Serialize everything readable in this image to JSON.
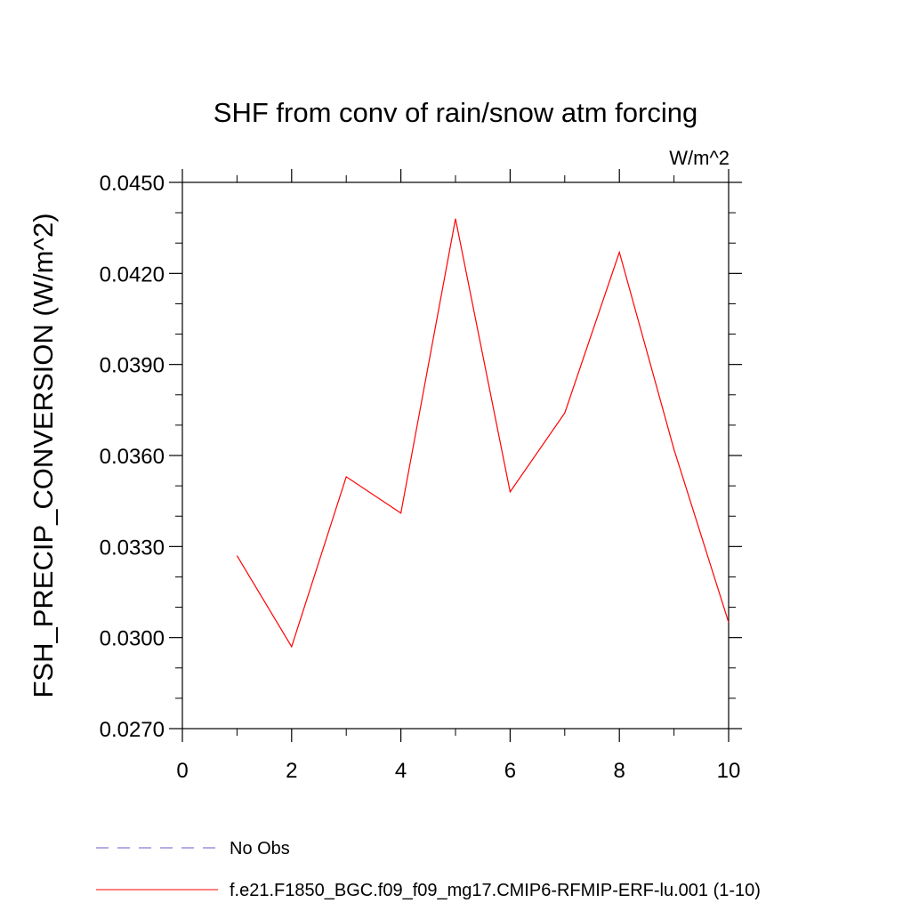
{
  "chart_data": {
    "type": "line",
    "title": "SHF from conv of rain/snow atm forcing",
    "units_label": "W/m^2",
    "ylabel": "FSH_PRECIP_CONVERSION  (W/m^2)",
    "xlabel": "",
    "xlim": [
      0,
      10
    ],
    "ylim": [
      0.027,
      0.045
    ],
    "xticks": [
      {
        "v": 0,
        "label": "0"
      },
      {
        "v": 2,
        "label": "2"
      },
      {
        "v": 4,
        "label": "4"
      },
      {
        "v": 6,
        "label": "6"
      },
      {
        "v": 8,
        "label": "8"
      },
      {
        "v": 10,
        "label": "10"
      }
    ],
    "yticks": [
      {
        "v": 0.027,
        "label": "0.0270"
      },
      {
        "v": 0.03,
        "label": "0.0300"
      },
      {
        "v": 0.033,
        "label": "0.0330"
      },
      {
        "v": 0.036,
        "label": "0.0360"
      },
      {
        "v": 0.039,
        "label": "0.0390"
      },
      {
        "v": 0.042,
        "label": "0.0420"
      },
      {
        "v": 0.045,
        "label": "0.0450"
      }
    ],
    "x_minor_step": 1,
    "y_minor_step": 0.001,
    "grid": false,
    "legend_position": "bottom",
    "series": [
      {
        "name": "f.e21.F1850_BGC.f09_f09_mg17.CMIP6-RFMIP-ERF-lu.001 (1-10)",
        "color": "#ff0000",
        "dash": "solid",
        "x": [
          1,
          2,
          3,
          4,
          5,
          6,
          7,
          8,
          9,
          10
        ],
        "y": [
          0.0327,
          0.0297,
          0.0353,
          0.0341,
          0.0438,
          0.0348,
          0.0374,
          0.0427,
          0.0362,
          0.0305
        ]
      }
    ],
    "legend": [
      {
        "label": "No Obs",
        "color": "#6a5acd",
        "dash": "dashed"
      },
      {
        "label": "f.e21.F1850_BGC.f09_f09_mg17.CMIP6-RFMIP-ERF-lu.001 (1-10)",
        "color": "#ff0000",
        "dash": "solid"
      }
    ]
  }
}
